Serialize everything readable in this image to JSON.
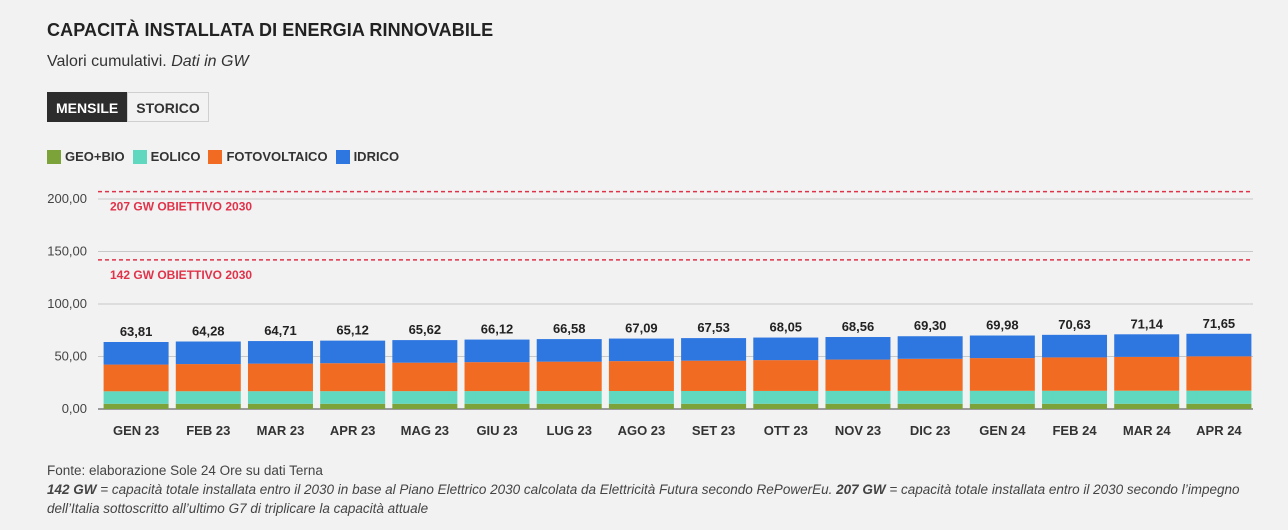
{
  "title": "CAPACITÀ INSTALLATA DI ENERGIA RINNOVABILE",
  "subtitle_main": "Valori cumulativi.",
  "subtitle_unit": "Dati in GW",
  "tabs": [
    {
      "label": "MENSILE",
      "active": true
    },
    {
      "label": "STORICO",
      "active": false
    }
  ],
  "legend": [
    {
      "label": "GEO+BIO",
      "color": "#7ba33a"
    },
    {
      "label": "EOLICO",
      "color": "#5fd8bf"
    },
    {
      "label": "FOTOVOLTAICO",
      "color": "#f26b22"
    },
    {
      "label": "IDRICO",
      "color": "#2f77e0"
    }
  ],
  "chart_data": {
    "type": "bar",
    "stacked": true,
    "categories": [
      "GEN 23",
      "FEB 23",
      "MAR 23",
      "APR 23",
      "MAG 23",
      "GIU 23",
      "LUG 23",
      "AGO 23",
      "SET 23",
      "OTT 23",
      "NOV 23",
      "DIC 23",
      "GEN 24",
      "FEB 24",
      "MAR 24",
      "APR 24"
    ],
    "series": [
      {
        "name": "GEO+BIO",
        "color": "#7ba33a",
        "values": [
          5,
          5,
          5,
          5,
          5,
          5,
          5,
          5,
          5,
          5,
          5,
          5,
          5,
          5,
          5,
          5
        ]
      },
      {
        "name": "EOLICO",
        "color": "#5fd8bf",
        "values": [
          11.86,
          11.9,
          11.93,
          11.96,
          12.0,
          12.04,
          12.08,
          12.12,
          12.16,
          12.2,
          12.24,
          12.29,
          12.34,
          12.38,
          12.42,
          12.46
        ]
      },
      {
        "name": "FOTOVOLTAICO",
        "color": "#f26b22",
        "values": [
          25.45,
          25.88,
          26.28,
          26.66,
          27.12,
          27.58,
          28.0,
          28.47,
          28.87,
          29.35,
          29.82,
          30.51,
          31.14,
          31.75,
          32.22,
          32.69
        ]
      },
      {
        "name": "IDRICO",
        "color": "#2f77e0",
        "values": [
          21.5,
          21.5,
          21.5,
          21.5,
          21.5,
          21.5,
          21.5,
          21.5,
          21.5,
          21.5,
          21.5,
          21.5,
          21.5,
          21.5,
          21.5,
          21.5
        ]
      }
    ],
    "totals": [
      "63,81",
      "64,28",
      "64,71",
      "65,12",
      "65,62",
      "66,12",
      "66,58",
      "67,09",
      "67,53",
      "68,05",
      "68,56",
      "69,30",
      "69,98",
      "70,63",
      "71,14",
      "71,65"
    ],
    "ylim": [
      0,
      207
    ],
    "yticks": [
      0,
      50,
      100,
      150,
      200
    ],
    "ytick_labels": [
      "0,00",
      "50,00",
      "100,00",
      "150,00",
      "200,00"
    ],
    "reference_lines": [
      {
        "value": 207,
        "label": "207 GW OBIETTIVO 2030",
        "color": "#e0334a"
      },
      {
        "value": 142,
        "label": "142 GW OBIETTIVO 2030",
        "color": "#e0334a"
      }
    ],
    "grid": true
  },
  "footer": {
    "source": "Fonte: elaborazione Sole 24 Ore su dati Terna",
    "note_142_bold": "142 GW",
    "note_142_text": " = capacità totale installata entro il 2030 in base al Piano Elettrico 2030 calcolata da Elettricità Futura secondo RePowerEu. ",
    "note_207_bold": "207 GW",
    "note_207_text": " = capacità totale installata entro il 2030 secondo l’impegno dell’Italia sottoscritto all’ultimo G7 di triplicare la capacità attuale"
  }
}
